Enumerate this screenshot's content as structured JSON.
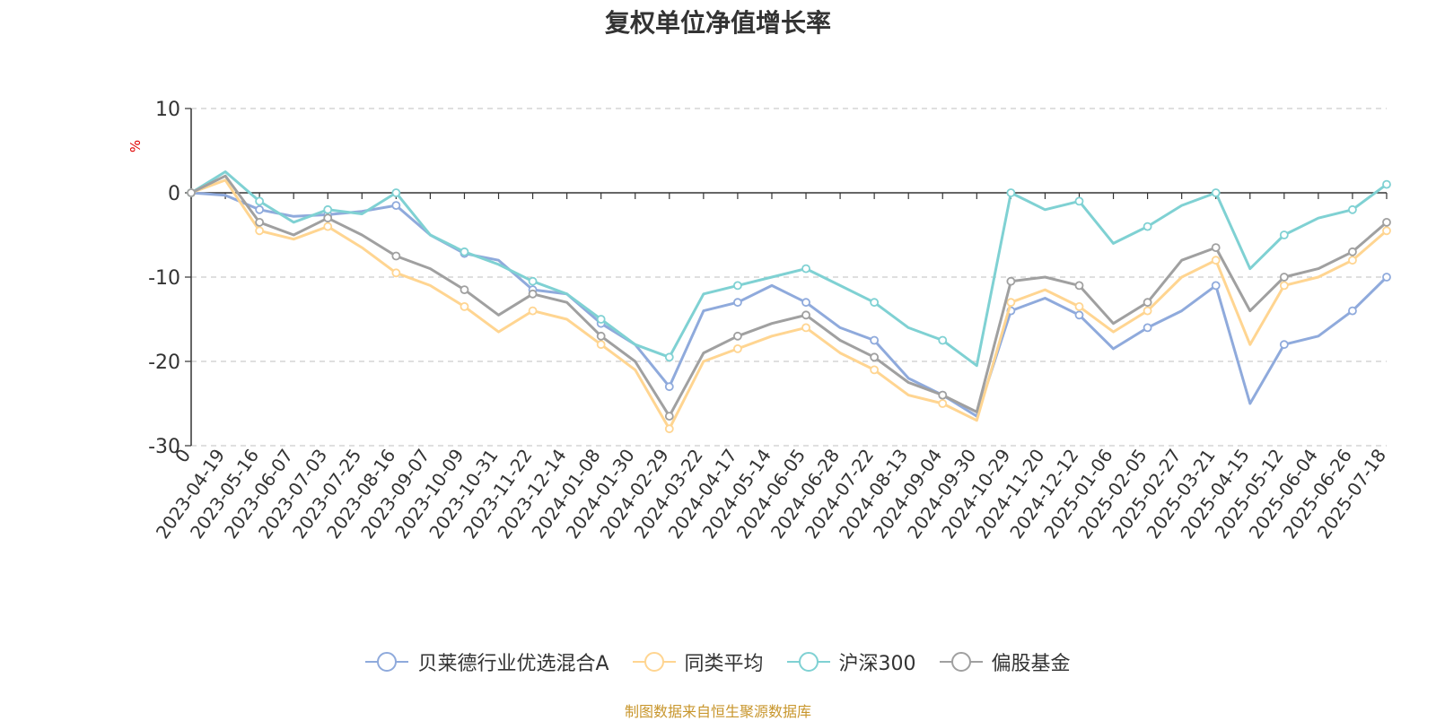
{
  "chart_data": {
    "type": "line",
    "title": "复权单位净值增长率",
    "ylabel": "%",
    "ylim": [
      -30,
      10
    ],
    "yticks": [
      10,
      0,
      -10,
      -20,
      -30
    ],
    "grid": true,
    "legend_position": "bottom",
    "x_tick_labels": [
      "0",
      "2023-04-19",
      "2023-05-16",
      "2023-06-07",
      "2023-07-03",
      "2023-07-25",
      "2023-08-16",
      "2023-09-07",
      "2023-10-09",
      "2023-10-31",
      "2023-11-22",
      "2023-12-14",
      "2024-01-08",
      "2024-01-30",
      "2024-02-29",
      "2024-03-22",
      "2024-04-17",
      "2024-05-14",
      "2024-06-05",
      "2024-06-28",
      "2024-07-22",
      "2024-08-13",
      "2024-09-04",
      "2024-09-30",
      "2024-10-29",
      "2024-11-20",
      "2024-12-12",
      "2025-01-06",
      "2025-02-05",
      "2025-02-27",
      "2025-03-21",
      "2025-04-15",
      "2025-05-12",
      "2025-06-04",
      "2025-06-26",
      "2025-07-18"
    ],
    "series": [
      {
        "name": "贝莱德行业优选混合A",
        "color": "#8faadc",
        "values": [
          0,
          -0.3,
          -2.0,
          -2.8,
          -2.6,
          -2.2,
          -1.5,
          -5.0,
          -7.2,
          -8.0,
          -11.5,
          -12.0,
          -15.5,
          -18.0,
          -23.0,
          -14.0,
          -13.0,
          -11.0,
          -13.0,
          -16.0,
          -17.5,
          -22.0,
          -24.0,
          -26.5,
          -14.0,
          -12.5,
          -14.5,
          -18.5,
          -16.0,
          -14.0,
          -11.0,
          -25.0,
          -18.0,
          -17.0,
          -14.0,
          -10.0
        ]
      },
      {
        "name": "同类平均",
        "color": "#ffd591",
        "values": [
          0,
          1.5,
          -4.5,
          -5.5,
          -4.0,
          -6.5,
          -9.5,
          -11.0,
          -13.5,
          -16.5,
          -14.0,
          -15.0,
          -18.0,
          -21.0,
          -28.0,
          -20.0,
          -18.5,
          -17.0,
          -16.0,
          -19.0,
          -21.0,
          -24.0,
          -25.0,
          -27.0,
          -13.0,
          -11.5,
          -13.5,
          -16.5,
          -14.0,
          -10.0,
          -8.0,
          -18.0,
          -11.0,
          -10.0,
          -8.0,
          -4.5
        ]
      },
      {
        "name": "沪深300",
        "color": "#7fd1d3",
        "values": [
          0,
          2.5,
          -1.0,
          -3.5,
          -2.0,
          -2.5,
          0.0,
          -5.0,
          -7.0,
          -8.5,
          -10.5,
          -12.0,
          -15.0,
          -18.0,
          -19.5,
          -12.0,
          -11.0,
          -10.0,
          -9.0,
          -11.0,
          -13.0,
          -16.0,
          -17.5,
          -20.5,
          0.0,
          -2.0,
          -1.0,
          -6.0,
          -4.0,
          -1.5,
          0.0,
          -9.0,
          -5.0,
          -3.0,
          -2.0,
          1.0
        ]
      },
      {
        "name": "偏股基金",
        "color": "#a0a0a0",
        "values": [
          0,
          2.0,
          -3.5,
          -5.0,
          -3.0,
          -5.0,
          -7.5,
          -9.0,
          -11.5,
          -14.5,
          -12.0,
          -13.0,
          -17.0,
          -20.0,
          -26.5,
          -19.0,
          -17.0,
          -15.5,
          -14.5,
          -17.5,
          -19.5,
          -22.5,
          -24.0,
          -26.0,
          -10.5,
          -10.0,
          -11.0,
          -15.5,
          -13.0,
          -8.0,
          -6.5,
          -14.0,
          -10.0,
          -9.0,
          -7.0,
          -3.5
        ]
      }
    ]
  },
  "legend": {
    "aria": "legend"
  },
  "source_note": "制图数据来自恒生聚源数据库"
}
